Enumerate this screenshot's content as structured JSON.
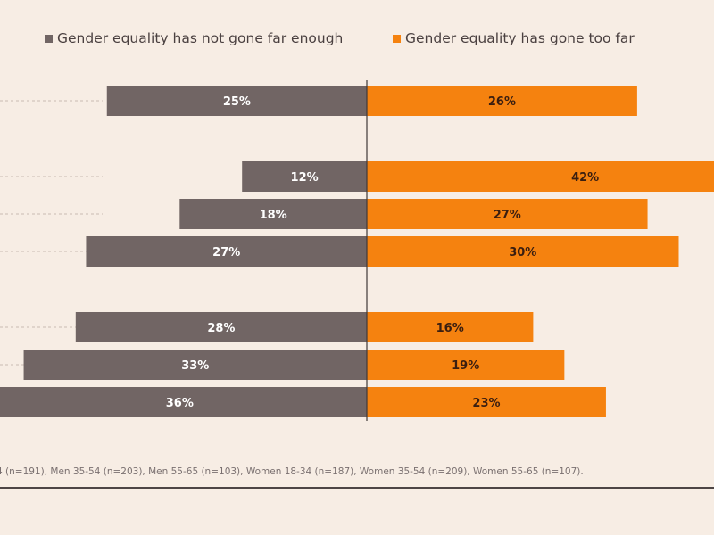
{
  "chart_data": {
    "type": "bar",
    "orientation": "horizontal-diverging",
    "series": [
      {
        "name": "Gender equality has not gone far enough",
        "color": "#716564",
        "values": [
          25,
          12,
          18,
          27,
          28,
          33,
          36
        ],
        "labels": [
          "25%",
          "12%",
          "18%",
          "27%",
          "28%",
          "33%",
          "36%"
        ]
      },
      {
        "name": "Gender equality has gone too far",
        "color": "#f5820f",
        "values": [
          26,
          42,
          27,
          30,
          16,
          19,
          23
        ],
        "labels": [
          "26%",
          "42%",
          "27%",
          "30%",
          "16%",
          "19%",
          "23%"
        ]
      }
    ],
    "legend": "top",
    "grid": false
  },
  "footnote": "4 (n=191), Men 35-54 (n=203), Men 55-65 (n=103), Women 18-34 (n=187), Women 35-54 (n=209), Women 55-65 (n=107)."
}
